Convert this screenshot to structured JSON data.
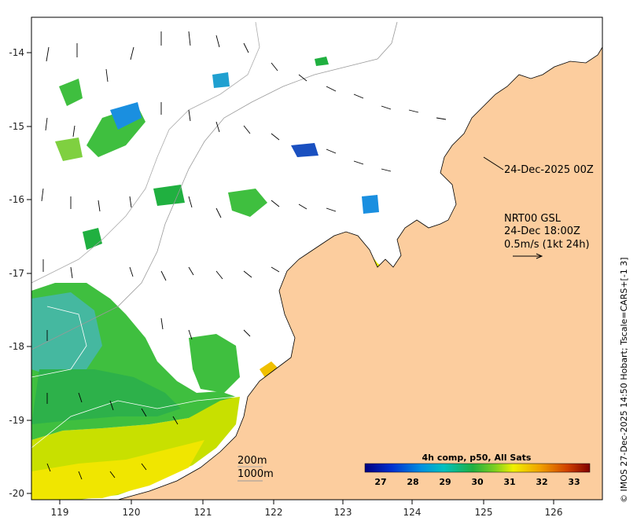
{
  "axes": {
    "x_ticks": [
      "119",
      "120",
      "121",
      "122",
      "123",
      "124",
      "125",
      "126"
    ],
    "y_ticks": [
      "-14",
      "-15",
      "-16",
      "-17",
      "-18",
      "-19",
      "-20"
    ]
  },
  "annotations": {
    "date_label": "24-Dec-2025 00Z",
    "title": "NRT00 GSL",
    "time_label": "24-Dec 18:00Z",
    "speed_scale": "0.5m/s (1kt 24h)",
    "contour_200": "200m",
    "contour_1000": "1000m",
    "credit": "© IMOS 27-Dec-2025 14:50 Hobart; Tscale=CARS+[-1 3]"
  },
  "colorbar": {
    "title": "4h comp, p50, All Sats",
    "ticks": [
      "27",
      "28",
      "29",
      "30",
      "31",
      "32",
      "33"
    ]
  },
  "colors": {
    "land": "#fccd9e",
    "ocean_no_data": "#ffffff",
    "sst_warm": "#f0e600",
    "sst_mid": "#3fbf3f",
    "sst_cool": "#1a8fe0"
  }
}
